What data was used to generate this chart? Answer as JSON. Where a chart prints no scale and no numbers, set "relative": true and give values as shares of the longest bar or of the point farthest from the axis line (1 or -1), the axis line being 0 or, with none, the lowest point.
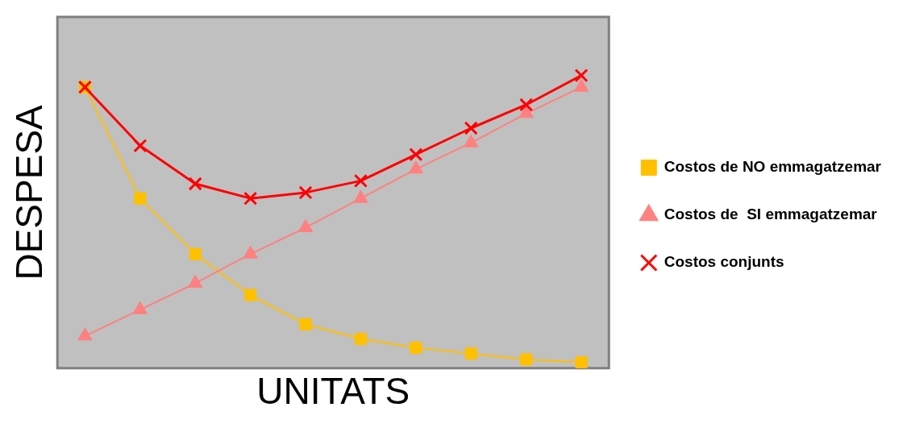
{
  "chart_data": {
    "type": "line",
    "relative": true,
    "xlabel": "UNITATS",
    "ylabel": "DESPESA",
    "legend": "right",
    "grid": false,
    "categories": [
      null,
      null,
      null,
      null,
      null,
      null,
      null,
      null,
      null,
      null
    ],
    "series": [
      {
        "name": "Costos de NO emmagatzemar",
        "color": "#ffc000",
        "marker": "square",
        "values": [
          0.96,
          0.58,
          0.39,
          0.25,
          0.15,
          0.1,
          0.07,
          0.05,
          0.03,
          0.02
        ]
      },
      {
        "name": "Costos de  SI emmagatzemar",
        "color": "#ff8080",
        "marker": "triangle",
        "values": [
          0.11,
          0.2,
          0.29,
          0.39,
          0.48,
          0.58,
          0.68,
          0.77,
          0.87,
          0.96
        ]
      },
      {
        "name": "Costos conjunts",
        "color": "#ff0000",
        "marker": "cross",
        "values": [
          0.96,
          0.76,
          0.63,
          0.58,
          0.6,
          0.64,
          0.73,
          0.82,
          0.9,
          1
        ]
      }
    ]
  }
}
